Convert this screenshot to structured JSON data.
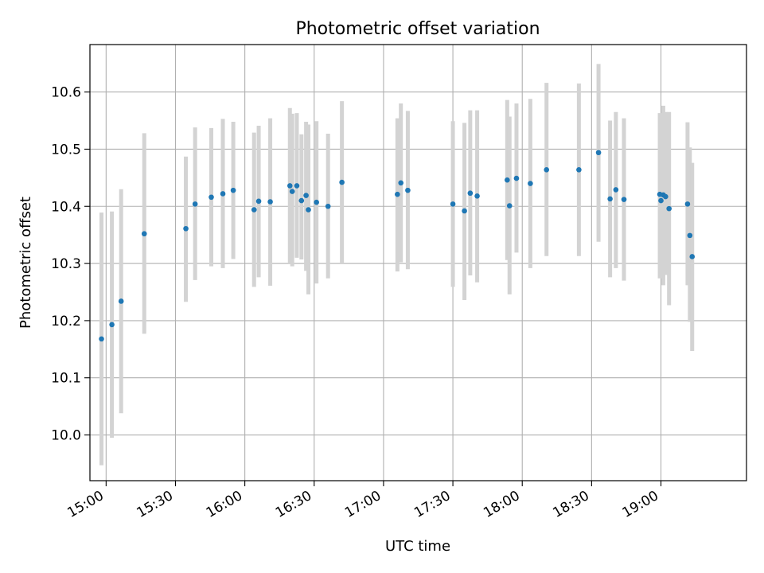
{
  "chart_data": {
    "type": "scatter",
    "title": "Photometric offset variation",
    "xlabel": "UTC time",
    "ylabel": "Photometric offset",
    "xlim": [
      "14:53",
      "19:37"
    ],
    "ylim": [
      9.92,
      10.683
    ],
    "x_ticks": [
      "15:00",
      "15:30",
      "16:00",
      "16:30",
      "17:00",
      "17:30",
      "18:00",
      "18:30",
      "19:00"
    ],
    "y_ticks": [
      10.0,
      10.1,
      10.2,
      10.3,
      10.4,
      10.5,
      10.6
    ],
    "grid": true,
    "colors": {
      "points": "#1f77b4",
      "errorbars": "#d3d3d3",
      "grid": "#b0b0b0"
    },
    "series": [
      {
        "x": [
          "14:58:00",
          "15:02:30",
          "15:06:30",
          "15:16:30",
          "15:34:30",
          "15:38:30",
          "15:45:30",
          "15:50:30",
          "15:55:00",
          "16:04:00",
          "16:06:00",
          "16:11:00",
          "16:19:30",
          "16:20:30",
          "16:22:30",
          "16:24:30",
          "16:26:30",
          "16:27:30",
          "16:31:00",
          "16:36:00",
          "16:42:00",
          "17:06:00",
          "17:07:30",
          "17:10:30",
          "17:30:00",
          "17:35:00",
          "17:37:30",
          "17:40:30",
          "17:53:30",
          "17:54:30",
          "17:57:30",
          "18:03:30",
          "18:10:30",
          "18:24:30",
          "18:33:00",
          "18:38:00",
          "18:40:30",
          "18:44:00",
          "18:59:30",
          "19:00:00",
          "19:01:00",
          "19:02:00",
          "19:03:30",
          "19:11:30",
          "19:12:30",
          "19:13:30"
        ],
        "y": [
          10.168,
          10.193,
          10.234,
          10.352,
          10.361,
          10.404,
          10.416,
          10.422,
          10.428,
          10.394,
          10.409,
          10.408,
          10.436,
          10.426,
          10.436,
          10.41,
          10.419,
          10.394,
          10.407,
          10.4,
          10.442,
          10.421,
          10.441,
          10.428,
          10.404,
          10.392,
          10.423,
          10.418,
          10.446,
          10.401,
          10.449,
          10.44,
          10.464,
          10.464,
          10.494,
          10.413,
          10.429,
          10.412,
          10.421,
          10.41,
          10.42,
          10.417,
          10.396,
          10.404,
          10.349,
          10.312
        ],
        "yerr_low": [
          9.947,
          9.995,
          10.038,
          10.177,
          10.233,
          10.271,
          10.295,
          10.292,
          10.308,
          10.259,
          10.276,
          10.261,
          10.3,
          10.295,
          10.31,
          10.307,
          10.287,
          10.246,
          10.265,
          10.274,
          10.3,
          10.286,
          10.302,
          10.29,
          10.259,
          10.236,
          10.279,
          10.267,
          10.306,
          10.246,
          10.319,
          10.292,
          10.313,
          10.313,
          10.338,
          10.276,
          10.292,
          10.27,
          10.274,
          10.287,
          10.262,
          10.28,
          10.227,
          10.262,
          10.198,
          10.147
        ],
        "yerr_high": [
          10.389,
          10.391,
          10.43,
          10.528,
          10.487,
          10.538,
          10.537,
          10.553,
          10.548,
          10.529,
          10.541,
          10.554,
          10.572,
          10.562,
          10.563,
          10.526,
          10.548,
          10.543,
          10.549,
          10.527,
          10.584,
          10.554,
          10.58,
          10.567,
          10.549,
          10.546,
          10.568,
          10.568,
          10.586,
          10.557,
          10.58,
          10.588,
          10.616,
          10.615,
          10.649,
          10.55,
          10.565,
          10.554,
          10.563,
          10.55,
          10.576,
          10.565,
          10.565,
          10.547,
          10.503,
          10.476
        ]
      }
    ]
  }
}
